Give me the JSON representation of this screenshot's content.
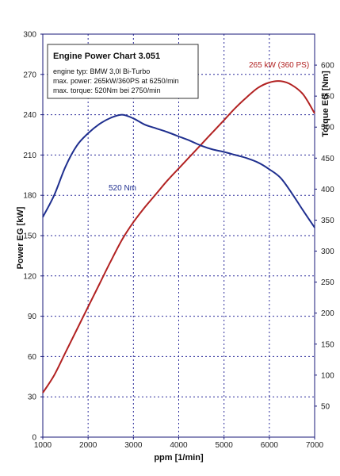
{
  "chart_data": {
    "type": "line",
    "xlabel": "ppm    [1/min]",
    "ylabel_left": "Power  EG   [kW]",
    "ylabel_right": "Torque  EG   [Nm]",
    "xlim": [
      1000,
      7000
    ],
    "ylim_left": [
      0,
      300
    ],
    "ylim_right": [
      0,
      650
    ],
    "x_ticks": [
      1000,
      2000,
      3000,
      4000,
      5000,
      6000,
      7000
    ],
    "y_ticks_left": [
      0,
      30,
      60,
      90,
      120,
      150,
      180,
      210,
      240,
      270,
      300
    ],
    "y_ticks_right": [
      50,
      100,
      150,
      200,
      250,
      300,
      350,
      400,
      450,
      500,
      550,
      600
    ],
    "grid": true,
    "legend_box": {
      "title": "Engine Power Chart 3.051",
      "lines": [
        "engine typ:  BMW 3,0l Bi-Turbo",
        "max. power: 265kW/360PS at 6250/min",
        "max. torque:  520Nm bei 2750/min"
      ]
    },
    "annotations": {
      "power_peak": "265 kW (360 PS)",
      "torque_peak": "520 Nm"
    },
    "colors": {
      "power": "#b22222",
      "torque": "#1f2f8f",
      "grid": "#2a2a9a",
      "frame": "#1a1a7a"
    },
    "series": [
      {
        "key": "power",
        "axis": "left",
        "x": [
          1000,
          1250,
          1500,
          1750,
          2000,
          2250,
          2500,
          2750,
          3000,
          3250,
          3500,
          3750,
          4000,
          4250,
          4500,
          4750,
          5000,
          5250,
          5500,
          5750,
          6000,
          6250,
          6500,
          6750,
          7000
        ],
        "values": [
          33,
          46,
          63,
          80,
          97,
          114,
          131,
          147,
          160,
          171,
          181,
          191,
          200,
          209,
          218,
          227,
          236,
          245,
          253,
          260,
          264,
          265,
          262,
          255,
          241
        ]
      },
      {
        "key": "torque",
        "axis": "right",
        "x": [
          1000,
          1250,
          1500,
          1750,
          2000,
          2250,
          2500,
          2750,
          3000,
          3250,
          3500,
          3750,
          4000,
          4250,
          4500,
          4750,
          5000,
          5250,
          5500,
          5750,
          6000,
          6250,
          6500,
          6750,
          7000
        ],
        "values": [
          355,
          390,
          436,
          470,
          490,
          505,
          515,
          520,
          514,
          504,
          498,
          492,
          485,
          478,
          470,
          464,
          460,
          455,
          450,
          443,
          432,
          418,
          393,
          365,
          338
        ]
      }
    ]
  }
}
